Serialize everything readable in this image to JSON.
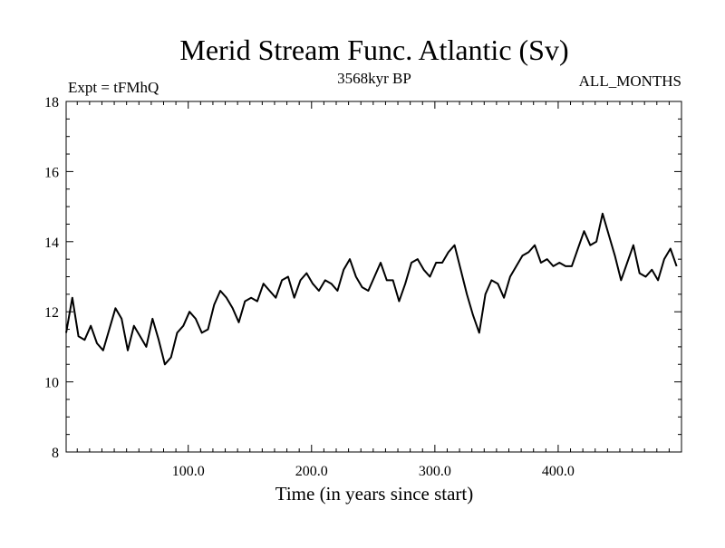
{
  "chart_data": {
    "type": "line",
    "title": "Merid Stream Func. Atlantic (Sv)",
    "subtitle": "3568kyr BP",
    "left_label": "Expt = tFMhQ",
    "right_label": "ALL_MONTHS",
    "xlabel": "Time (in years since start)",
    "ylabel": "",
    "xlim": [
      1,
      500
    ],
    "ylim": [
      8,
      18
    ],
    "xticks": [
      100,
      200,
      300,
      400
    ],
    "xtick_labels": [
      "100.0",
      "200.0",
      "300.0",
      "400.0"
    ],
    "yticks": [
      8,
      10,
      12,
      14,
      16,
      18
    ],
    "ytick_labels": [
      "8",
      "10",
      "12",
      "14",
      "16",
      "18"
    ],
    "grid": false,
    "series": [
      {
        "name": "Merid Stream Func. Atlantic",
        "color": "#000000",
        "x_start": 1,
        "x_step": 5,
        "values": [
          11.4,
          12.4,
          11.3,
          11.2,
          11.6,
          11.1,
          10.9,
          11.5,
          12.1,
          11.8,
          10.9,
          11.6,
          11.3,
          11.0,
          11.8,
          11.2,
          10.5,
          10.7,
          11.4,
          11.6,
          12.0,
          11.8,
          11.4,
          11.5,
          12.2,
          12.6,
          12.4,
          12.1,
          11.7,
          12.3,
          12.4,
          12.3,
          12.8,
          12.6,
          12.4,
          12.9,
          13.0,
          12.4,
          12.9,
          13.1,
          12.8,
          12.6,
          12.9,
          12.8,
          12.6,
          13.2,
          13.5,
          13.0,
          12.7,
          12.6,
          13.0,
          13.4,
          12.9,
          12.9,
          12.3,
          12.8,
          13.4,
          13.5,
          13.2,
          13.0,
          13.4,
          13.4,
          13.7,
          13.9,
          13.2,
          12.5,
          11.9,
          11.4,
          12.5,
          12.9,
          12.8,
          12.4,
          13.0,
          13.3,
          13.6,
          13.7,
          13.9,
          13.4,
          13.5,
          13.3,
          13.4,
          13.3,
          13.3,
          13.8,
          14.3,
          13.9,
          14.0,
          14.8,
          14.2,
          13.6,
          12.9,
          13.4,
          13.9,
          13.1,
          13.0,
          13.2,
          12.9,
          13.5,
          13.8,
          13.3
        ]
      }
    ]
  }
}
